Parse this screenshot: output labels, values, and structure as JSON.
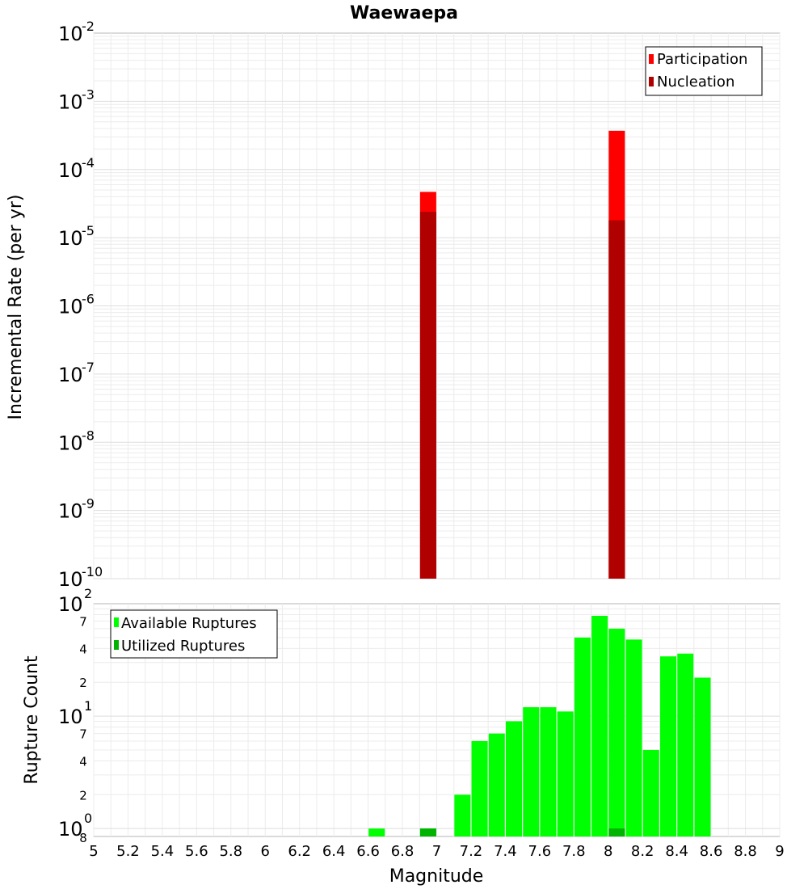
{
  "chart_data": [
    {
      "type": "bar",
      "title": "Waewaepa",
      "ylabel": "Incremental Rate (per yr)",
      "yscale": "log",
      "ylim": [
        1e-10,
        0.01
      ],
      "xlim": [
        5,
        9
      ],
      "grid": true,
      "legend_position": "top-right",
      "y_ticks": [
        {
          "base": "10",
          "exp": "-10"
        },
        {
          "base": "10",
          "exp": "-9"
        },
        {
          "base": "10",
          "exp": "-8"
        },
        {
          "base": "10",
          "exp": "-7"
        },
        {
          "base": "10",
          "exp": "-6"
        },
        {
          "base": "10",
          "exp": "-5"
        },
        {
          "base": "10",
          "exp": "-4"
        },
        {
          "base": "10",
          "exp": "-3"
        },
        {
          "base": "10",
          "exp": "-2"
        }
      ],
      "series": [
        {
          "name": "Participation",
          "color": "#ff0000",
          "x": [
            6.95,
            8.05
          ],
          "values": [
            4.7e-05,
            0.00037
          ]
        },
        {
          "name": "Nucleation",
          "color": "#b00000",
          "x": [
            6.95,
            8.05
          ],
          "values": [
            2.4e-05,
            1.8e-05
          ]
        }
      ]
    },
    {
      "type": "bar",
      "xlabel": "Magnitude",
      "ylabel": "Rupture Count",
      "yscale": "log",
      "ylim": [
        0.85,
        100
      ],
      "xlim": [
        5,
        9
      ],
      "grid": true,
      "legend_position": "top-left",
      "x_ticks": [
        "5",
        "5.2",
        "5.4",
        "5.6",
        "5.8",
        "6",
        "6.2",
        "6.4",
        "6.6",
        "6.8",
        "7",
        "7.2",
        "7.4",
        "7.6",
        "7.8",
        "8",
        "8.2",
        "8.4",
        "8.6",
        "8.8",
        "9"
      ],
      "y_major_ticks": [
        {
          "base": "10",
          "exp": "0"
        },
        {
          "base": "10",
          "exp": "1"
        },
        {
          "base": "10",
          "exp": "2"
        }
      ],
      "y_minor_ticks": [
        {
          "label": "8",
          "value": 0.8
        },
        {
          "label": "2",
          "value": 2
        },
        {
          "label": "4",
          "value": 4
        },
        {
          "label": "7",
          "value": 7
        },
        {
          "label": "2",
          "value": 20
        },
        {
          "label": "4",
          "value": 40
        },
        {
          "label": "7",
          "value": 70
        }
      ],
      "series": [
        {
          "name": "Available Ruptures",
          "color": "#00ff00",
          "x": [
            6.65,
            6.95,
            7.15,
            7.25,
            7.35,
            7.45,
            7.55,
            7.65,
            7.75,
            7.85,
            7.95,
            8.05,
            8.15,
            8.25,
            8.35,
            8.45,
            8.55
          ],
          "values": [
            1,
            1,
            2,
            6,
            7,
            9,
            12,
            12,
            11,
            50,
            78,
            60,
            48,
            5,
            34,
            36,
            22
          ]
        },
        {
          "name": "Utilized Ruptures",
          "color": "#00b300",
          "x": [
            6.95,
            8.05
          ],
          "values": [
            1,
            1
          ]
        }
      ]
    }
  ]
}
